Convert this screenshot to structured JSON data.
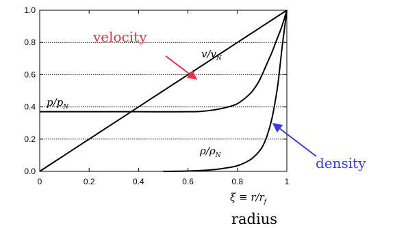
{
  "chart_data": {
    "type": "line",
    "xlim": [
      0,
      1
    ],
    "ylim": [
      0,
      1
    ],
    "x_ticks": [
      "0",
      "0.2",
      "0.4",
      "0.6",
      "0.8",
      "1"
    ],
    "y_ticks": [
      "0.0",
      "0.2",
      "0.4",
      "0.6",
      "0.8",
      "1.0"
    ],
    "grid": "horizontal dotted lines at 0.2, 0.4, 0.6, 0.8",
    "xlabel_math": "ξ ≡ r/r",
    "xlabel_math_sub": "f",
    "xlabel": "radius",
    "series": [
      {
        "name": "v/v",
        "name_sub": "N",
        "points": [
          [
            0,
            0
          ],
          [
            0.1,
            0.1
          ],
          [
            0.2,
            0.2
          ],
          [
            0.3,
            0.3
          ],
          [
            0.4,
            0.4
          ],
          [
            0.5,
            0.5
          ],
          [
            0.6,
            0.6
          ],
          [
            0.7,
            0.7
          ],
          [
            0.8,
            0.8
          ],
          [
            0.9,
            0.9
          ],
          [
            1.0,
            1.0
          ]
        ]
      },
      {
        "name": "p/p",
        "name_sub": "N",
        "points": [
          [
            0,
            0.37
          ],
          [
            0.2,
            0.37
          ],
          [
            0.4,
            0.37
          ],
          [
            0.6,
            0.37
          ],
          [
            0.65,
            0.372
          ],
          [
            0.7,
            0.38
          ],
          [
            0.75,
            0.395
          ],
          [
            0.8,
            0.42
          ],
          [
            0.85,
            0.48
          ],
          [
            0.88,
            0.54
          ],
          [
            0.9,
            0.6
          ],
          [
            0.92,
            0.67
          ],
          [
            0.94,
            0.74
          ],
          [
            0.96,
            0.82
          ],
          [
            0.98,
            0.9
          ],
          [
            1.0,
            1.0
          ]
        ]
      },
      {
        "name": "ρ/ρ",
        "name_sub": "N",
        "points": [
          [
            0.5,
            0.0
          ],
          [
            0.6,
            0.002
          ],
          [
            0.7,
            0.01
          ],
          [
            0.75,
            0.02
          ],
          [
            0.8,
            0.035
          ],
          [
            0.85,
            0.07
          ],
          [
            0.88,
            0.11
          ],
          [
            0.9,
            0.15
          ],
          [
            0.92,
            0.22
          ],
          [
            0.94,
            0.33
          ],
          [
            0.96,
            0.5
          ],
          [
            0.97,
            0.62
          ],
          [
            0.98,
            0.76
          ],
          [
            0.99,
            0.88
          ],
          [
            1.0,
            1.0
          ]
        ]
      }
    ],
    "annotations": [
      {
        "text": "velocity",
        "color": "#e8304a",
        "points_to": [
          0.65,
          0.56
        ]
      },
      {
        "text": "density",
        "color": "#3a3ad8",
        "points_to": [
          0.955,
          0.29
        ]
      }
    ]
  }
}
